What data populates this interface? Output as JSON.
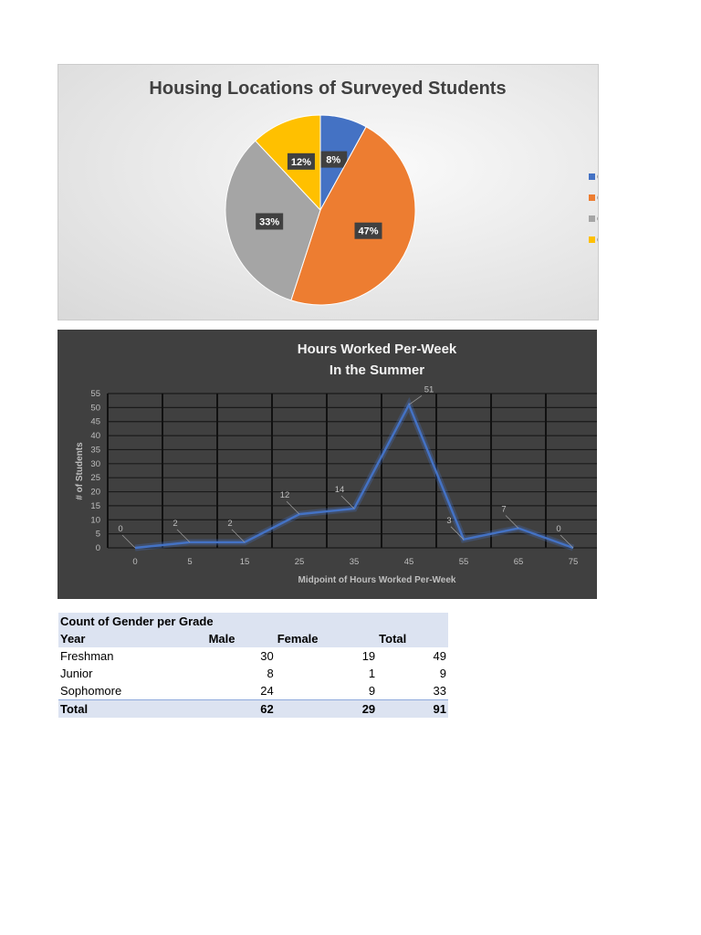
{
  "chart_data": [
    {
      "type": "pie",
      "title": "Housing Locations of Surveyed Students",
      "slices": [
        {
          "label": "C",
          "value": 8,
          "color": "#4472c4",
          "data_label": "8%"
        },
        {
          "label": "C",
          "value": 47,
          "color": "#ed7d31",
          "data_label": "47%"
        },
        {
          "label": "C",
          "value": 33,
          "color": "#a5a5a5",
          "data_label": "33%"
        },
        {
          "label": "C",
          "value": 12,
          "color": "#ffc000",
          "data_label": "12%"
        }
      ],
      "legend": "right"
    },
    {
      "type": "line",
      "title": [
        "Hours Worked Per-Week",
        "In the Summer"
      ],
      "xlabel": "Midpoint of Hours Worked Per-Week",
      "ylabel": "# of Students",
      "categories": [
        "0",
        "5",
        "15",
        "25",
        "35",
        "45",
        "55",
        "65",
        "75"
      ],
      "values": [
        0,
        2,
        2,
        12,
        14,
        51,
        3,
        7,
        0
      ],
      "ylim": [
        0,
        55
      ],
      "yticks": [
        0,
        5,
        10,
        15,
        20,
        25,
        30,
        35,
        40,
        45,
        50,
        55
      ],
      "grid": true,
      "color": "#4472c4"
    }
  ],
  "table": {
    "title": "Count of Gender per Grade",
    "headers": [
      "Year",
      "Male",
      "Female",
      "Total"
    ],
    "rows": [
      [
        "Freshman",
        "30",
        "19",
        "49"
      ],
      [
        "Junior",
        "8",
        "1",
        "9"
      ],
      [
        "Sophomore",
        "24",
        "9",
        "33"
      ]
    ],
    "total": [
      "Total",
      "62",
      "29",
      "91"
    ]
  }
}
